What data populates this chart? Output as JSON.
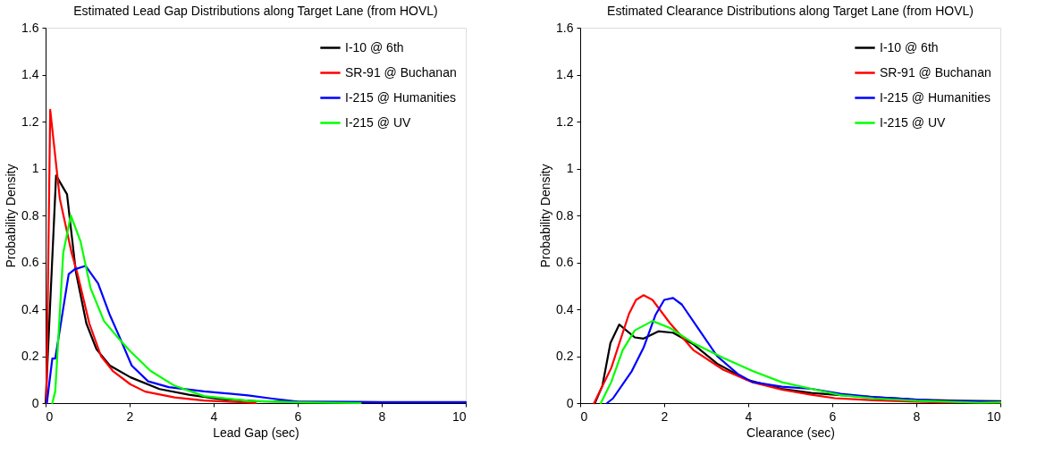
{
  "chart_data": [
    {
      "type": "line",
      "title": "Estimated Lead Gap Distributions along Target Lane (from HOVL)",
      "xlabel": "Lead Gap (sec)",
      "ylabel": "Probability Density",
      "xlim": [
        0,
        10
      ],
      "ylim": [
        0,
        1.6
      ],
      "xticks": [
        0,
        2,
        4,
        6,
        8,
        10
      ],
      "yticks": [
        0,
        0.2,
        0.4,
        0.6,
        0.8,
        1,
        1.2,
        1.4,
        1.6
      ],
      "grid": false,
      "legend": "top right",
      "series": [
        {
          "name": "I-10 @ 6th",
          "color": "#000000",
          "x": [
            0.0,
            0.25,
            0.51,
            0.72,
            0.97,
            1.21,
            1.53,
            2.02,
            2.71,
            3.41,
            4.1,
            5.0,
            6.0,
            8.0,
            10.0
          ],
          "values": [
            0.0,
            0.97,
            0.89,
            0.56,
            0.34,
            0.23,
            0.16,
            0.11,
            0.06,
            0.036,
            0.018,
            0.008,
            0.005,
            0.003,
            0.002
          ]
        },
        {
          "name": "SR-91 @ Buchanan",
          "color": "#ff0000",
          "x": [
            0.02,
            0.11,
            0.34,
            0.62,
            0.76,
            1.04,
            1.32,
            1.6,
            2.02,
            2.37,
            3.07,
            3.77,
            4.5,
            5.0
          ],
          "values": [
            0.0,
            1.25,
            0.87,
            0.64,
            0.55,
            0.34,
            0.2,
            0.137,
            0.08,
            0.049,
            0.024,
            0.011,
            0.005,
            0.0
          ]
        },
        {
          "name": "I-215 @ Humanities",
          "color": "#0000ff",
          "x": [
            0.03,
            0.16,
            0.23,
            0.55,
            0.69,
            0.95,
            1.25,
            1.53,
            1.74,
            2.05,
            2.44,
            2.93,
            3.77,
            4.82,
            5.36,
            6.0,
            8.0,
            10.0
          ],
          "values": [
            0.0,
            0.19,
            0.19,
            0.55,
            0.57,
            0.585,
            0.51,
            0.375,
            0.29,
            0.16,
            0.093,
            0.068,
            0.05,
            0.033,
            0.02,
            0.006,
            0.004,
            0.004
          ]
        },
        {
          "name": "I-215 @ UV",
          "color": "#00ff00",
          "x": [
            0.16,
            0.23,
            0.42,
            0.6,
            0.83,
            1.07,
            1.39,
            1.74,
            2.02,
            2.5,
            3.07,
            3.77,
            4.82,
            6.0,
            7.5
          ],
          "values": [
            0.0,
            0.05,
            0.64,
            0.8,
            0.69,
            0.49,
            0.35,
            0.275,
            0.22,
            0.137,
            0.074,
            0.03,
            0.01,
            0.003,
            0.0
          ]
        }
      ]
    },
    {
      "type": "line",
      "title": "Estimated Clearance Distributions along Target Lane (from HOVL)",
      "xlabel": "Clearance (sec)",
      "ylabel": "Probability Density",
      "xlim": [
        0,
        10
      ],
      "ylim": [
        0,
        1.6
      ],
      "xticks": [
        0,
        2,
        4,
        6,
        8,
        10
      ],
      "yticks": [
        0,
        0.2,
        0.4,
        0.6,
        0.8,
        1,
        1.2,
        1.4,
        1.6
      ],
      "grid": false,
      "legend": "top right",
      "series": [
        {
          "name": "I-10 @ 6th",
          "color": "#000000",
          "x": [
            0.35,
            0.53,
            0.72,
            0.93,
            1.3,
            1.51,
            1.86,
            2.21,
            2.7,
            3.26,
            3.96,
            4.8,
            5.5,
            6.06,
            7.0,
            8.0,
            9.0,
            10.0
          ],
          "values": [
            0.0,
            0.075,
            0.256,
            0.335,
            0.28,
            0.275,
            0.306,
            0.3,
            0.25,
            0.168,
            0.1,
            0.061,
            0.043,
            0.036,
            0.025,
            0.015,
            0.01,
            0.008
          ]
        },
        {
          "name": "SR-91 @ Buchanan",
          "color": "#ff0000",
          "x": [
            0.33,
            0.74,
            1.16,
            1.33,
            1.51,
            1.72,
            2.14,
            2.7,
            3.4,
            4.1,
            4.8,
            5.5,
            6.06,
            7.0,
            8.5,
            10.0
          ],
          "values": [
            0.0,
            0.15,
            0.38,
            0.44,
            0.46,
            0.44,
            0.34,
            0.225,
            0.143,
            0.089,
            0.057,
            0.036,
            0.021,
            0.012,
            0.003,
            0.002
          ]
        },
        {
          "name": "I-215 @ Humanities",
          "color": "#0000ff",
          "x": [
            0.64,
            0.78,
            1.23,
            1.51,
            1.79,
            2.0,
            2.21,
            2.42,
            2.84,
            3.26,
            3.75,
            4.1,
            4.8,
            5.5,
            6.2,
            7.0,
            8.5,
            10.0
          ],
          "values": [
            0.0,
            0.02,
            0.137,
            0.237,
            0.375,
            0.44,
            0.448,
            0.42,
            0.31,
            0.2,
            0.124,
            0.09,
            0.07,
            0.061,
            0.04,
            0.025,
            0.01,
            0.005
          ]
        },
        {
          "name": "I-215 @ UV",
          "color": "#00ff00",
          "x": [
            0.49,
            0.74,
            1.01,
            1.3,
            1.72,
            2.14,
            2.7,
            3.4,
            4.1,
            4.8,
            5.5,
            6.2,
            7.0,
            8.0,
            9.5,
            10.0
          ],
          "values": [
            0.0,
            0.09,
            0.225,
            0.31,
            0.35,
            0.32,
            0.255,
            0.193,
            0.137,
            0.089,
            0.061,
            0.034,
            0.02,
            0.01,
            0.002,
            0.003
          ]
        }
      ]
    }
  ]
}
